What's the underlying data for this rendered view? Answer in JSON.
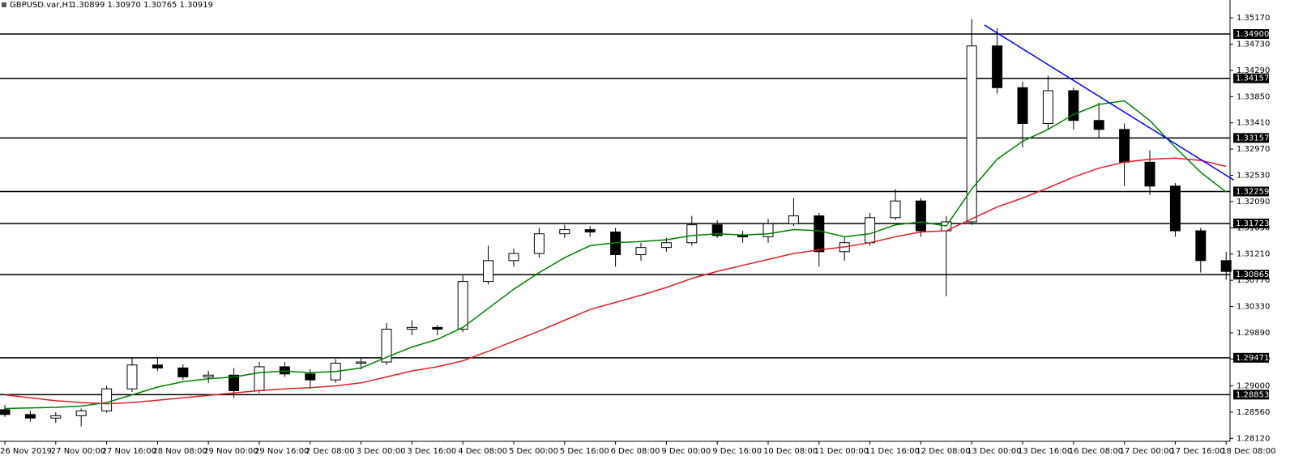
{
  "chart_data": {
    "type": "candlestick",
    "title": "GBPUSD.var,H1",
    "subtitle": "1.30899 1.30970 1.30765 1.30919",
    "categories": [
      "26 Nov 2019",
      null,
      "27 Nov 00:00",
      null,
      "27 Nov 16:00",
      null,
      "28 Nov 08:00",
      null,
      "29 Nov 00:00",
      null,
      "29 Nov 16:00",
      null,
      "2 Dec 08:00",
      null,
      "3 Dec 00:00",
      null,
      "3 Dec 16:00",
      null,
      "4 Dec 08:00",
      null,
      "5 Dec 00:00",
      null,
      "5 Dec 16:00",
      null,
      "6 Dec 08:00",
      null,
      "9 Dec 00:00",
      null,
      "9 Dec 16:00",
      null,
      "10 Dec 08:00",
      null,
      "11 Dec 00:00",
      null,
      "11 Dec 16:00",
      null,
      "12 Dec 08:00",
      null,
      "13 Dec 00:00",
      null,
      "13 Dec 16:00",
      null,
      "16 Dec 08:00",
      null,
      "17 Dec 00:00",
      null,
      "17 Dec 16:00",
      null,
      "18 Dec 08:00"
    ],
    "open": [
      1.286,
      1.2852,
      1.2846,
      1.285,
      1.2858,
      1.2895,
      1.2935,
      1.293,
      1.2915,
      1.2918,
      1.2892,
      1.2932,
      1.292,
      1.291,
      1.2938,
      1.294,
      1.2995,
      1.2998,
      1.2995,
      1.3075,
      1.311,
      1.3122,
      1.3155,
      1.3162,
      1.3158,
      1.312,
      1.3132,
      1.314,
      1.317,
      1.3152,
      1.315,
      1.3172,
      1.3185,
      1.3125,
      1.314,
      1.3182,
      1.321,
      1.316,
      1.3175,
      1.347,
      1.34,
      1.334,
      1.3395,
      1.3345,
      1.333,
      1.3275,
      1.3235,
      1.316,
      1.311
    ],
    "high": [
      1.2868,
      1.2858,
      1.2856,
      1.2862,
      1.29,
      1.2948,
      1.2946,
      1.2936,
      1.2925,
      1.293,
      1.294,
      1.294,
      1.2928,
      1.2945,
      1.2948,
      1.3005,
      1.301,
      1.3002,
      1.3085,
      1.3135,
      1.313,
      1.3165,
      1.317,
      1.3168,
      1.3165,
      1.314,
      1.3148,
      1.3185,
      1.3178,
      1.316,
      1.318,
      1.3215,
      1.319,
      1.315,
      1.319,
      1.323,
      1.3215,
      1.3185,
      1.3515,
      1.35,
      1.341,
      1.342,
      1.34,
      1.3375,
      1.334,
      1.3295,
      1.324,
      1.3165,
      1.3125
    ],
    "low": [
      1.2848,
      1.284,
      1.2838,
      1.2832,
      1.2855,
      1.289,
      1.2925,
      1.291,
      1.2905,
      1.288,
      1.2888,
      1.2915,
      1.2895,
      1.2905,
      1.2928,
      1.2935,
      1.2985,
      1.2985,
      1.299,
      1.307,
      1.31,
      1.3115,
      1.3148,
      1.315,
      1.31,
      1.311,
      1.3125,
      1.3135,
      1.3148,
      1.314,
      1.314,
      1.3168,
      1.31,
      1.311,
      1.3135,
      1.3178,
      1.315,
      1.305,
      1.317,
      1.339,
      1.33,
      1.333,
      1.333,
      1.3315,
      1.3235,
      1.322,
      1.315,
      1.309,
      1.3078
    ],
    "close": [
      1.2852,
      1.2846,
      1.285,
      1.2858,
      1.2895,
      1.2935,
      1.293,
      1.2915,
      1.2918,
      1.2892,
      1.2932,
      1.292,
      1.291,
      1.2938,
      1.294,
      1.2995,
      1.2998,
      1.2995,
      1.3075,
      1.311,
      1.3122,
      1.3155,
      1.3162,
      1.3158,
      1.312,
      1.3132,
      1.314,
      1.317,
      1.3152,
      1.315,
      1.3172,
      1.3185,
      1.3125,
      1.314,
      1.3182,
      1.321,
      1.316,
      1.3175,
      1.347,
      1.34,
      1.334,
      1.3395,
      1.3345,
      1.333,
      1.3275,
      1.3235,
      1.316,
      1.311,
      1.30919
    ],
    "ma_lines": [
      {
        "color": "#008000",
        "values": [
          1.2862,
          1.2863,
          1.2864,
          1.2866,
          1.2872,
          1.2885,
          1.2898,
          1.2907,
          1.2912,
          1.2915,
          1.2922,
          1.2925,
          1.2922,
          1.2924,
          1.293,
          1.2948,
          1.2965,
          1.2978,
          1.2998,
          1.303,
          1.3062,
          1.309,
          1.3115,
          1.3135,
          1.314,
          1.3142,
          1.3145,
          1.3152,
          1.3155,
          1.3153,
          1.3155,
          1.3162,
          1.316,
          1.315,
          1.3155,
          1.317,
          1.3175,
          1.3168,
          1.323,
          1.328,
          1.331,
          1.333,
          1.3355,
          1.3372,
          1.3378,
          1.3345,
          1.33,
          1.3258,
          1.3225
        ]
      },
      {
        "color": "#e0202a",
        "values": [
          1.2885,
          1.288,
          1.2875,
          1.2872,
          1.287,
          1.2872,
          1.2876,
          1.288,
          1.2884,
          1.2888,
          1.2892,
          1.2895,
          1.2897,
          1.29,
          1.2905,
          1.2915,
          1.2925,
          1.2932,
          1.2942,
          1.2958,
          1.2975,
          1.2992,
          1.301,
          1.3028,
          1.304,
          1.3052,
          1.3065,
          1.308,
          1.3092,
          1.3102,
          1.3112,
          1.3122,
          1.3128,
          1.3133,
          1.314,
          1.315,
          1.3158,
          1.316,
          1.318,
          1.32,
          1.3215,
          1.3232,
          1.325,
          1.3265,
          1.3275,
          1.328,
          1.3282,
          1.3278,
          1.3268
        ]
      }
    ],
    "trendline": {
      "color": "#0000ff",
      "x": [
        38.5,
        48.3
      ],
      "y": [
        1.3505,
        1.3245
      ]
    },
    "levels": [
      {
        "value": 1.349,
        "label": "1.34900"
      },
      {
        "value": 1.34157,
        "label": "1.34157"
      },
      {
        "value": 1.33157,
        "label": "1.33157"
      },
      {
        "value": 1.32259,
        "label": "1.32259"
      },
      {
        "value": 1.31723,
        "label": "1.31723"
      },
      {
        "value": 1.30865,
        "label": "1.30865"
      },
      {
        "value": 1.29471,
        "label": "1.29471"
      },
      {
        "value": 1.28853,
        "label": "1.28853"
      }
    ],
    "ylim": [
      1.2807,
      1.3547
    ],
    "yticks": [
      {
        "value": 1.3517,
        "label": "1.35170"
      },
      {
        "value": 1.3473,
        "label": "1.34730"
      },
      {
        "value": 1.3429,
        "label": "1.34290"
      },
      {
        "value": 1.3385,
        "label": "1.33850"
      },
      {
        "value": 1.3341,
        "label": "1.33410"
      },
      {
        "value": 1.3297,
        "label": "1.32970"
      },
      {
        "value": 1.3253,
        "label": "1.32530"
      },
      {
        "value": 1.3209,
        "label": "1.32090"
      },
      {
        "value": 1.3165,
        "label": "1.31650"
      },
      {
        "value": 1.3121,
        "label": "1.31210"
      },
      {
        "value": 1.3077,
        "label": "1.30770"
      },
      {
        "value": 1.3033,
        "label": "1.30330"
      },
      {
        "value": 1.2989,
        "label": "1.29890"
      },
      {
        "value": 1.2945,
        "label": "1.29450"
      },
      {
        "value": 1.29,
        "label": "1.29000"
      },
      {
        "value": 1.2856,
        "label": "1.28560"
      },
      {
        "value": 1.2812,
        "label": "1.28120"
      }
    ],
    "grid": false
  }
}
